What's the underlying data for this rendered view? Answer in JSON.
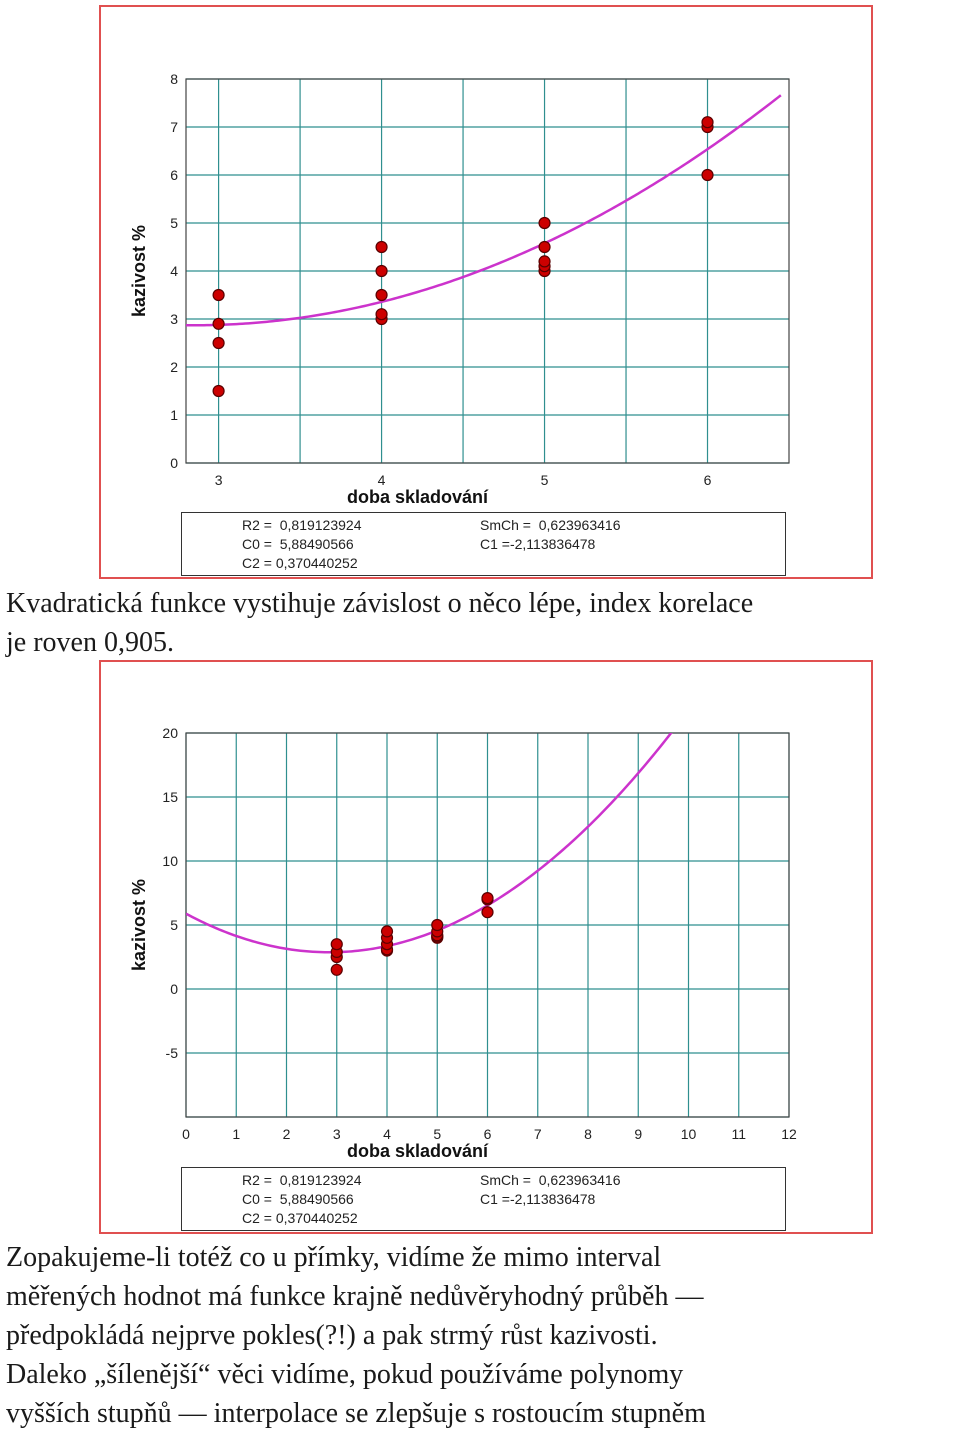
{
  "figure1": {
    "chart_data": {
      "type": "scatter",
      "xlabel": "doba skladování",
      "ylabel": "kazivost %",
      "xlim": [
        2.8,
        6.5
      ],
      "ylim": [
        0,
        8
      ],
      "xticks": [
        3,
        4,
        5,
        6
      ],
      "yticks": [
        0,
        1,
        2,
        3,
        4,
        5,
        6,
        7,
        8
      ],
      "points": [
        {
          "x": 3,
          "y": 1.5
        },
        {
          "x": 3,
          "y": 2.5
        },
        {
          "x": 3,
          "y": 2.9
        },
        {
          "x": 3,
          "y": 3.5
        },
        {
          "x": 4,
          "y": 3.0
        },
        {
          "x": 4,
          "y": 3.1
        },
        {
          "x": 4,
          "y": 3.5
        },
        {
          "x": 4,
          "y": 4.0
        },
        {
          "x": 4,
          "y": 4.5
        },
        {
          "x": 5,
          "y": 4.0
        },
        {
          "x": 5,
          "y": 4.1
        },
        {
          "x": 5,
          "y": 4.2
        },
        {
          "x": 5,
          "y": 4.5
        },
        {
          "x": 5,
          "y": 5.0
        },
        {
          "x": 6,
          "y": 6.0
        },
        {
          "x": 6,
          "y": 7.0
        },
        {
          "x": 6,
          "y": 7.1
        }
      ],
      "fit": {
        "c0": 5.88490566,
        "c1": -2.113836478,
        "c2": 0.370440252,
        "x_range": [
          2.8,
          6.45
        ]
      },
      "grid": true,
      "point_color": "#cc0000",
      "curve_color": "#cc33cc"
    },
    "stats": {
      "r2": "R2 =  0,819123924",
      "c0": "C0 =  5,88490566",
      "c2": "C2 = 0,370440252",
      "smch": "SmCh =  0,623963416",
      "c1": "C1 =-2,113836478"
    }
  },
  "paragraph1": [
    "Kvadratická funkce vystihuje závislost o něco lépe, index korelace",
    "je roven 0,905."
  ],
  "figure2": {
    "chart_data": {
      "type": "scatter",
      "xlabel": "doba skladování",
      "ylabel": "kazivost %",
      "xlim": [
        0,
        12
      ],
      "ylim": [
        -10,
        20
      ],
      "xticks": [
        0,
        1,
        2,
        3,
        4,
        5,
        6,
        7,
        8,
        9,
        10,
        11,
        12
      ],
      "yticks": [
        -5,
        0,
        5,
        10,
        15,
        20
      ],
      "points": [
        {
          "x": 3,
          "y": 1.5
        },
        {
          "x": 3,
          "y": 2.5
        },
        {
          "x": 3,
          "y": 2.9
        },
        {
          "x": 3,
          "y": 3.5
        },
        {
          "x": 4,
          "y": 3.0
        },
        {
          "x": 4,
          "y": 3.1
        },
        {
          "x": 4,
          "y": 3.5
        },
        {
          "x": 4,
          "y": 4.0
        },
        {
          "x": 4,
          "y": 4.5
        },
        {
          "x": 5,
          "y": 4.0
        },
        {
          "x": 5,
          "y": 4.1
        },
        {
          "x": 5,
          "y": 4.2
        },
        {
          "x": 5,
          "y": 4.5
        },
        {
          "x": 5,
          "y": 5.0
        },
        {
          "x": 6,
          "y": 6.0
        },
        {
          "x": 6,
          "y": 7.0
        },
        {
          "x": 6,
          "y": 7.1
        }
      ],
      "fit": {
        "c0": 5.88490566,
        "c1": -2.113836478,
        "c2": 0.370440252,
        "x_range": [
          0,
          12
        ]
      },
      "grid": true,
      "point_color": "#cc0000",
      "curve_color": "#cc33cc"
    },
    "stats": {
      "r2": "R2 =  0,819123924",
      "c0": "C0 =  5,88490566",
      "c2": "C2 = 0,370440252",
      "smch": "SmCh =  0,623963416",
      "c1": "C1 =-2,113836478"
    }
  },
  "paragraph2": [
    "Zopakujeme-li totéž co u přímky, vidíme že mimo interval",
    "měřených hodnot má funkce krajně nedůvěryhodný průběh —",
    "předpokládá nejprve pokles(?!) a pak strmý růst kazivosti.",
    "Daleko „šílenější“ věci vidíme, pokud používáme polynomy",
    "vyšších stupňů — interpolace se zlepšuje s rostoucím stupněm"
  ]
}
